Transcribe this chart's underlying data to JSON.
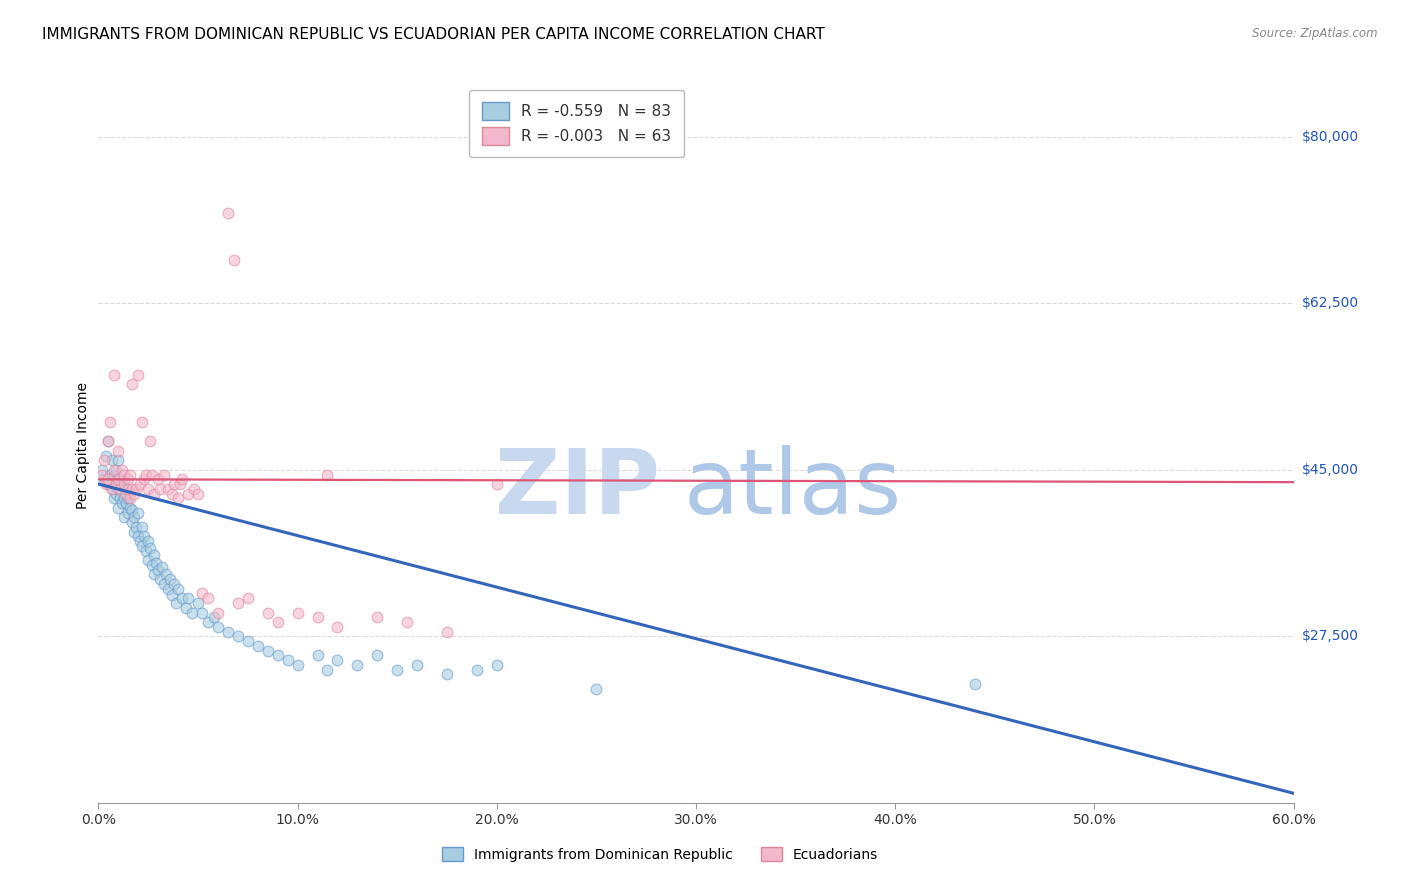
{
  "title": "IMMIGRANTS FROM DOMINICAN REPUBLIC VS ECUADORIAN PER CAPITA INCOME CORRELATION CHART",
  "source": "Source: ZipAtlas.com",
  "ylabel": "Per Capita Income",
  "xlim": [
    0.0,
    0.6
  ],
  "ylim": [
    10000,
    85000
  ],
  "yticks": [
    27500,
    45000,
    62500,
    80000
  ],
  "ytick_labels": [
    "$27,500",
    "$45,000",
    "$62,500",
    "$80,000"
  ],
  "xticks": [
    0.0,
    0.1,
    0.2,
    0.3,
    0.4,
    0.5,
    0.6
  ],
  "xtick_labels": [
    "0.0%",
    "10.0%",
    "20.0%",
    "30.0%",
    "40.0%",
    "50.0%",
    "60.0%"
  ],
  "blue_legend_label": "R = -0.559   N = 83",
  "pink_legend_label": "R = -0.003   N = 63",
  "legend_label_blue": "Immigrants from Dominican Republic",
  "legend_label_pink": "Ecuadorians",
  "blue_color": "#a8cce0",
  "pink_color": "#f4b8cc",
  "blue_edge_color": "#6699cc",
  "pink_edge_color": "#dd8899",
  "blue_line_color": "#3366bb",
  "pink_line_color": "#dd5577",
  "blue_trendline_x": [
    0.0,
    0.6
  ],
  "blue_trendline_y": [
    43500,
    11000
  ],
  "pink_trendline_x": [
    0.0,
    0.6
  ],
  "pink_trendline_y": [
    44000,
    43700
  ],
  "blue_scatter": [
    [
      0.002,
      45000
    ],
    [
      0.003,
      44000
    ],
    [
      0.004,
      46500
    ],
    [
      0.005,
      43500
    ],
    [
      0.005,
      48000
    ],
    [
      0.006,
      44500
    ],
    [
      0.007,
      43000
    ],
    [
      0.007,
      46000
    ],
    [
      0.008,
      42000
    ],
    [
      0.008,
      44500
    ],
    [
      0.009,
      42500
    ],
    [
      0.009,
      45000
    ],
    [
      0.01,
      43000
    ],
    [
      0.01,
      46000
    ],
    [
      0.01,
      41000
    ],
    [
      0.011,
      44000
    ],
    [
      0.011,
      42000
    ],
    [
      0.012,
      43500
    ],
    [
      0.012,
      41500
    ],
    [
      0.013,
      42000
    ],
    [
      0.013,
      40000
    ],
    [
      0.014,
      41500
    ],
    [
      0.014,
      43000
    ],
    [
      0.015,
      42000
    ],
    [
      0.015,
      40500
    ],
    [
      0.016,
      41000
    ],
    [
      0.017,
      39500
    ],
    [
      0.017,
      40800
    ],
    [
      0.018,
      38500
    ],
    [
      0.018,
      40000
    ],
    [
      0.019,
      39000
    ],
    [
      0.02,
      38000
    ],
    [
      0.02,
      40500
    ],
    [
      0.021,
      37500
    ],
    [
      0.022,
      39000
    ],
    [
      0.022,
      37000
    ],
    [
      0.023,
      38000
    ],
    [
      0.024,
      36500
    ],
    [
      0.025,
      37500
    ],
    [
      0.025,
      35500
    ],
    [
      0.026,
      36800
    ],
    [
      0.027,
      35000
    ],
    [
      0.028,
      36000
    ],
    [
      0.028,
      34000
    ],
    [
      0.029,
      35200
    ],
    [
      0.03,
      34500
    ],
    [
      0.031,
      33500
    ],
    [
      0.032,
      34800
    ],
    [
      0.033,
      33000
    ],
    [
      0.034,
      34000
    ],
    [
      0.035,
      32500
    ],
    [
      0.036,
      33500
    ],
    [
      0.037,
      31800
    ],
    [
      0.038,
      33000
    ],
    [
      0.039,
      31000
    ],
    [
      0.04,
      32500
    ],
    [
      0.042,
      31500
    ],
    [
      0.044,
      30500
    ],
    [
      0.045,
      31500
    ],
    [
      0.047,
      30000
    ],
    [
      0.05,
      31000
    ],
    [
      0.052,
      30000
    ],
    [
      0.055,
      29000
    ],
    [
      0.058,
      29500
    ],
    [
      0.06,
      28500
    ],
    [
      0.065,
      28000
    ],
    [
      0.07,
      27500
    ],
    [
      0.075,
      27000
    ],
    [
      0.08,
      26500
    ],
    [
      0.085,
      26000
    ],
    [
      0.09,
      25500
    ],
    [
      0.095,
      25000
    ],
    [
      0.1,
      24500
    ],
    [
      0.11,
      25500
    ],
    [
      0.115,
      24000
    ],
    [
      0.12,
      25000
    ],
    [
      0.13,
      24500
    ],
    [
      0.14,
      25500
    ],
    [
      0.15,
      24000
    ],
    [
      0.16,
      24500
    ],
    [
      0.175,
      23500
    ],
    [
      0.19,
      24000
    ],
    [
      0.2,
      24500
    ],
    [
      0.25,
      22000
    ],
    [
      0.44,
      22500
    ]
  ],
  "pink_scatter": [
    [
      0.002,
      44500
    ],
    [
      0.003,
      46000
    ],
    [
      0.004,
      43500
    ],
    [
      0.005,
      48000
    ],
    [
      0.005,
      44000
    ],
    [
      0.006,
      50000
    ],
    [
      0.007,
      43000
    ],
    [
      0.008,
      45000
    ],
    [
      0.008,
      55000
    ],
    [
      0.009,
      43500
    ],
    [
      0.01,
      44000
    ],
    [
      0.01,
      47000
    ],
    [
      0.011,
      43000
    ],
    [
      0.012,
      45000
    ],
    [
      0.013,
      43500
    ],
    [
      0.013,
      44500
    ],
    [
      0.014,
      42500
    ],
    [
      0.015,
      44000
    ],
    [
      0.015,
      43000
    ],
    [
      0.016,
      42000
    ],
    [
      0.016,
      44500
    ],
    [
      0.017,
      43000
    ],
    [
      0.017,
      54000
    ],
    [
      0.018,
      42500
    ],
    [
      0.019,
      43000
    ],
    [
      0.02,
      55000
    ],
    [
      0.021,
      43500
    ],
    [
      0.022,
      50000
    ],
    [
      0.023,
      44000
    ],
    [
      0.024,
      44500
    ],
    [
      0.025,
      43000
    ],
    [
      0.026,
      48000
    ],
    [
      0.027,
      44500
    ],
    [
      0.028,
      42500
    ],
    [
      0.03,
      44000
    ],
    [
      0.031,
      43000
    ],
    [
      0.033,
      44500
    ],
    [
      0.035,
      43000
    ],
    [
      0.037,
      42500
    ],
    [
      0.038,
      43500
    ],
    [
      0.04,
      42000
    ],
    [
      0.041,
      43500
    ],
    [
      0.042,
      44000
    ],
    [
      0.045,
      42500
    ],
    [
      0.048,
      43000
    ],
    [
      0.05,
      42500
    ],
    [
      0.052,
      32000
    ],
    [
      0.055,
      31500
    ],
    [
      0.06,
      30000
    ],
    [
      0.065,
      72000
    ],
    [
      0.068,
      67000
    ],
    [
      0.07,
      31000
    ],
    [
      0.075,
      31500
    ],
    [
      0.085,
      30000
    ],
    [
      0.09,
      29000
    ],
    [
      0.1,
      30000
    ],
    [
      0.11,
      29500
    ],
    [
      0.115,
      44500
    ],
    [
      0.12,
      28500
    ],
    [
      0.14,
      29500
    ],
    [
      0.155,
      29000
    ],
    [
      0.175,
      28000
    ],
    [
      0.2,
      43500
    ]
  ],
  "background_color": "#ffffff",
  "grid_color": "#cccccc",
  "title_fontsize": 11,
  "tick_fontsize": 10,
  "scatter_size": 60,
  "scatter_alpha": 0.6,
  "watermark_zip_color": "#c8d8ee",
  "watermark_atlas_color": "#b0c8e8",
  "watermark_fontsize": 65
}
